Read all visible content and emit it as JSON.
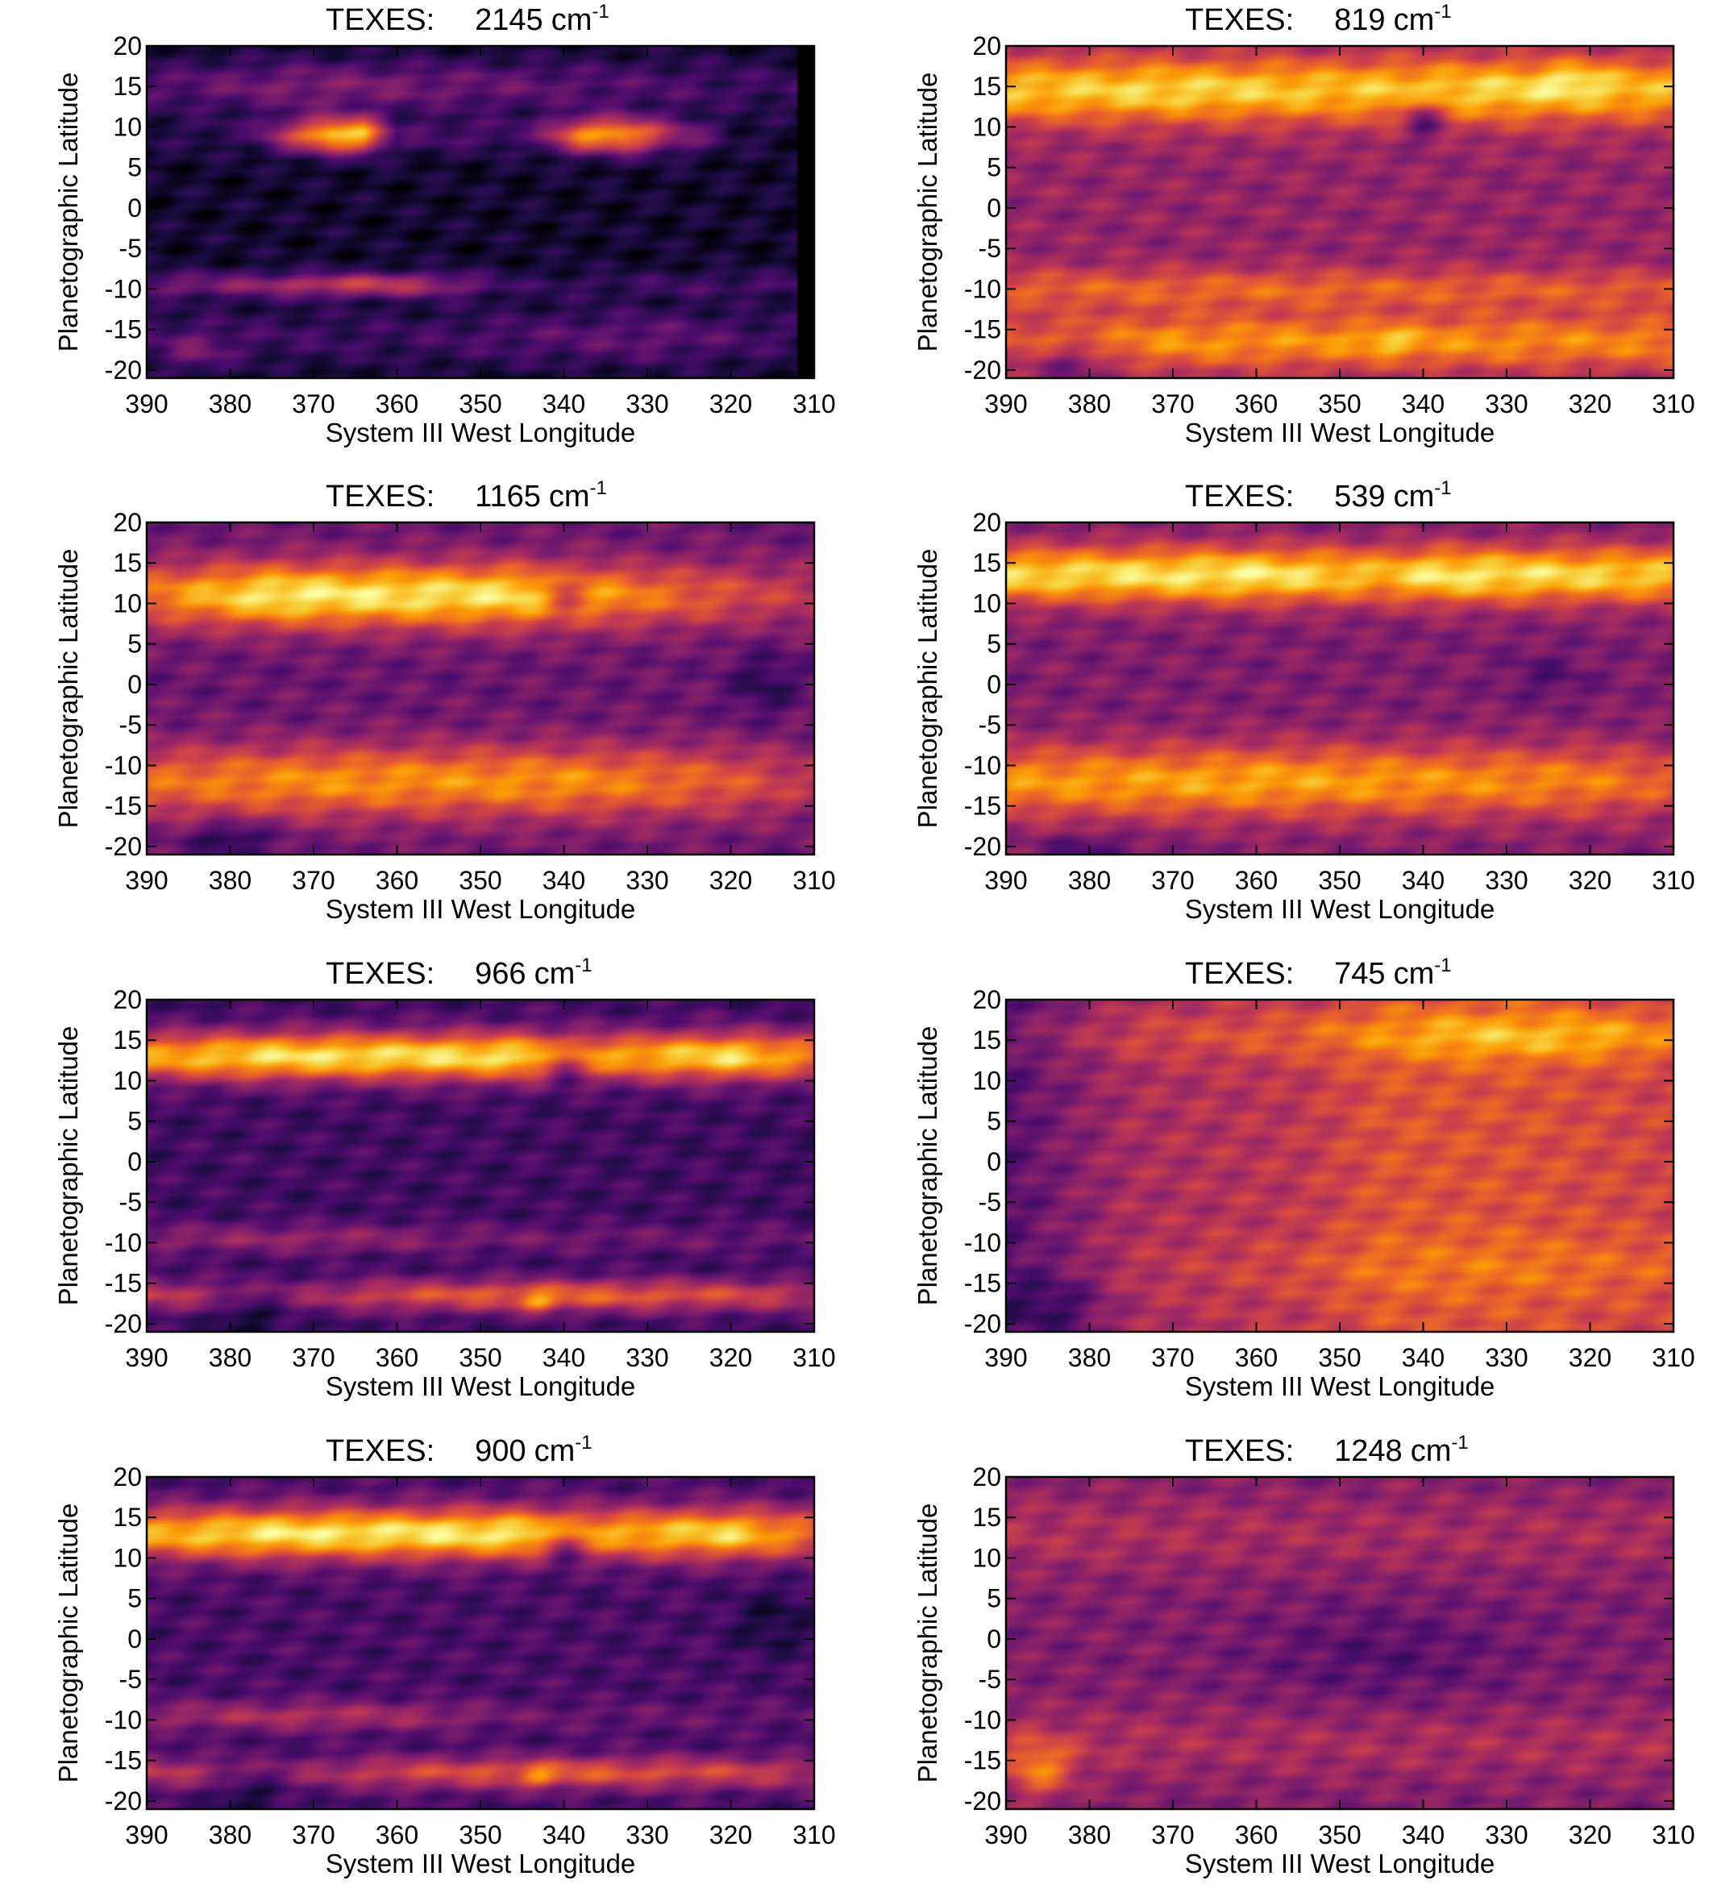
{
  "figure": {
    "colormap": [
      "#000004",
      "#1b0c41",
      "#4a0c6b",
      "#781c6d",
      "#a52c60",
      "#cf4446",
      "#ed6925",
      "#fb9b06",
      "#f7d13d",
      "#fcffa4"
    ],
    "instrument_label": "TEXES:",
    "unit_base": "cm",
    "unit_exp": "-1",
    "xlabel": "System III West Longitude",
    "ylabel": "Planetographic Latitude",
    "xlim": [
      390,
      310
    ],
    "ylim": [
      -21,
      20
    ],
    "xticks": [
      "390",
      "380",
      "370",
      "360",
      "350",
      "340",
      "330",
      "320",
      "310"
    ],
    "yticks": [
      "20",
      "15",
      "10",
      "5",
      "0",
      "-5",
      "-10",
      "-15",
      "-20"
    ]
  },
  "chart_data": [
    {
      "type": "heatmap",
      "title_value": "2145",
      "xlabel": "System III West Longitude",
      "ylabel": "Planetographic Latitude",
      "xlim": [
        390,
        310
      ],
      "ylim": [
        -21,
        20
      ],
      "base": 0.08,
      "no_data_from_lon": 312,
      "bands": [
        {
          "lat": 9,
          "width": 2.2,
          "amp": 0.85,
          "lonmod": [
            [
              390,
              0.05
            ],
            [
              378,
              0.1
            ],
            [
              372,
              0.55
            ],
            [
              368,
              0.95
            ],
            [
              364,
              0.9
            ],
            [
              360,
              0.15
            ],
            [
              344,
              0.15
            ],
            [
              338,
              0.75
            ],
            [
              333,
              0.85
            ],
            [
              328,
              0.45
            ],
            [
              320,
              0.05
            ],
            [
              310,
              0.0
            ]
          ]
        },
        {
          "lat": 15,
          "width": 3.2,
          "amp": 0.3,
          "lonmod": [
            [
              390,
              0.5
            ],
            [
              370,
              0.9
            ],
            [
              350,
              0.7
            ],
            [
              330,
              0.5
            ],
            [
              310,
              0.3
            ]
          ]
        },
        {
          "lat": -9.5,
          "width": 1.6,
          "amp": 0.35,
          "lonmod": [
            [
              390,
              0.6
            ],
            [
              370,
              0.9
            ],
            [
              355,
              0.8
            ],
            [
              345,
              0.2
            ],
            [
              310,
              0.4
            ]
          ]
        },
        {
          "lat": -16,
          "width": 3.5,
          "amp": 0.2,
          "lonmod": [
            [
              390,
              0.6
            ],
            [
              360,
              0.5
            ],
            [
              330,
              1.0
            ],
            [
              310,
              0.4
            ]
          ]
        }
      ],
      "features": [
        {
          "lon": 364,
          "lat": -9.5,
          "dlon": 8,
          "dlat": 1.2,
          "amp": 0.15
        },
        {
          "lon": 384,
          "lat": -18,
          "dlon": 4,
          "dlat": 2.5,
          "amp": 0.15
        }
      ]
    },
    {
      "type": "heatmap",
      "title_value": "819",
      "xlabel": "System III West Longitude",
      "ylabel": "Planetographic Latitude",
      "xlim": [
        390,
        310
      ],
      "ylim": [
        -21,
        20
      ],
      "base": 0.4,
      "bands": [
        {
          "lat": 14.5,
          "width": 4.0,
          "amp": 0.5,
          "lonmod": [
            [
              390,
              0.9
            ],
            [
              370,
              1.0
            ],
            [
              350,
              0.9
            ],
            [
              330,
              1.0
            ],
            [
              310,
              0.85
            ]
          ]
        },
        {
          "lat": -10,
          "width": 2.5,
          "amp": 0.25,
          "lonmod": [
            [
              390,
              0.9
            ],
            [
              360,
              1.0
            ],
            [
              310,
              0.8
            ]
          ]
        },
        {
          "lat": -16.5,
          "width": 3.5,
          "amp": 0.35,
          "lonmod": [
            [
              390,
              0.6
            ],
            [
              370,
              1.0
            ],
            [
              340,
              1.0
            ],
            [
              310,
              0.9
            ]
          ]
        }
      ],
      "features": [
        {
          "lon": 340,
          "lat": 11,
          "dlon": 2.5,
          "dlat": 2.5,
          "amp": -0.3
        },
        {
          "lon": 344,
          "lat": -16.5,
          "dlon": 3,
          "dlat": 1.5,
          "amp": 0.15
        },
        {
          "lon": 322,
          "lat": 16,
          "dlon": 4,
          "dlat": 2,
          "amp": 0.15
        },
        {
          "lon": 382,
          "lat": -19,
          "dlon": 5,
          "dlat": 2.5,
          "amp": -0.2
        }
      ]
    },
    {
      "type": "heatmap",
      "title_value": "1165",
      "xlabel": "System III West Longitude",
      "ylabel": "Planetographic Latitude",
      "xlim": [
        390,
        310
      ],
      "ylim": [
        -21,
        20
      ],
      "base": 0.3,
      "bands": [
        {
          "lat": 11,
          "width": 4.0,
          "amp": 0.65,
          "lonmod": [
            [
              390,
              0.6
            ],
            [
              375,
              1.0
            ],
            [
              345,
              0.95
            ],
            [
              330,
              0.6
            ],
            [
              315,
              0.35
            ],
            [
              310,
              0.3
            ]
          ]
        },
        {
          "lat": -12,
          "width": 4.5,
          "amp": 0.45,
          "lonmod": [
            [
              390,
              0.8
            ],
            [
              370,
              1.0
            ],
            [
              340,
              1.0
            ],
            [
              320,
              0.7
            ],
            [
              310,
              0.4
            ]
          ]
        }
      ],
      "features": [
        {
          "lon": 316,
          "lat": 0,
          "dlon": 4,
          "dlat": 4,
          "amp": -0.15
        },
        {
          "lon": 340,
          "lat": 11,
          "dlon": 2.5,
          "dlat": 2.5,
          "amp": -0.25
        },
        {
          "lon": 380,
          "lat": -19,
          "dlon": 5,
          "dlat": 2,
          "amp": -0.2
        }
      ]
    },
    {
      "type": "heatmap",
      "title_value": "539",
      "xlabel": "System III West Longitude",
      "ylabel": "Planetographic Latitude",
      "xlim": [
        390,
        310
      ],
      "ylim": [
        -21,
        20
      ],
      "base": 0.35,
      "bands": [
        {
          "lat": 13.5,
          "width": 3.5,
          "amp": 0.6,
          "lonmod": [
            [
              390,
              0.9
            ],
            [
              360,
              1.0
            ],
            [
              345,
              0.8
            ],
            [
              338,
              1.0
            ],
            [
              310,
              0.85
            ]
          ]
        },
        {
          "lat": -12,
          "width": 4.5,
          "amp": 0.45,
          "lonmod": [
            [
              390,
              0.9
            ],
            [
              360,
              1.0
            ],
            [
              320,
              0.8
            ],
            [
              310,
              0.6
            ]
          ]
        }
      ],
      "features": [
        {
          "lon": 325,
          "lat": 1,
          "dlon": 5,
          "dlat": 3,
          "amp": -0.1
        },
        {
          "lon": 380,
          "lat": -20,
          "dlon": 5,
          "dlat": 1.5,
          "amp": -0.15
        }
      ]
    },
    {
      "type": "heatmap",
      "title_value": "966",
      "xlabel": "System III West Longitude",
      "ylabel": "Planetographic Latitude",
      "xlim": [
        390,
        310
      ],
      "ylim": [
        -21,
        20
      ],
      "base": 0.2,
      "bands": [
        {
          "lat": 13,
          "width": 3.0,
          "amp": 0.72,
          "lonmod": [
            [
              390,
              0.8
            ],
            [
              375,
              1.0
            ],
            [
              345,
              1.0
            ],
            [
              335,
              0.8
            ],
            [
              320,
              1.0
            ],
            [
              310,
              0.7
            ]
          ]
        },
        {
          "lat": -9.5,
          "width": 1.8,
          "amp": 0.2,
          "lonmod": [
            [
              390,
              0.8
            ],
            [
              370,
              1.0
            ],
            [
              350,
              0.6
            ],
            [
              310,
              0.4
            ]
          ]
        },
        {
          "lat": -16.5,
          "width": 2.0,
          "amp": 0.45,
          "lonmod": [
            [
              390,
              0.7
            ],
            [
              375,
              0.3
            ],
            [
              360,
              0.8
            ],
            [
              340,
              1.0
            ],
            [
              320,
              0.8
            ],
            [
              310,
              0.6
            ]
          ]
        }
      ],
      "features": [
        {
          "lon": 340,
          "lat": 12,
          "dlon": 2.5,
          "dlat": 2.5,
          "amp": -0.3
        },
        {
          "lon": 343,
          "lat": -17.5,
          "dlon": 2,
          "dlat": 1.2,
          "amp": 0.25
        },
        {
          "lon": 378,
          "lat": -19,
          "dlon": 4,
          "dlat": 2.5,
          "amp": -0.15
        }
      ]
    },
    {
      "type": "heatmap",
      "title_value": "745",
      "xlabel": "System III West Longitude",
      "ylabel": "Planetographic Latitude",
      "xlim": [
        390,
        310
      ],
      "ylim": [
        -21,
        20
      ],
      "base": 0.5,
      "lon_gradient": [
        [
          390,
          -0.25
        ],
        [
          375,
          -0.05
        ],
        [
          355,
          0.0
        ],
        [
          345,
          0.1
        ],
        [
          330,
          0.1
        ],
        [
          310,
          0.05
        ]
      ],
      "bands": [
        {
          "lat": 15.5,
          "width": 3.0,
          "amp": 0.25,
          "lonmod": [
            [
              390,
              0.2
            ],
            [
              360,
              0.5
            ],
            [
              345,
              0.6
            ],
            [
              335,
              1.0
            ],
            [
              320,
              1.0
            ],
            [
              310,
              0.6
            ]
          ]
        },
        {
          "lat": -13,
          "width": 4.0,
          "amp": 0.1,
          "lonmod": [
            [
              390,
              0.0
            ],
            [
              360,
              0.6
            ],
            [
              330,
              1.0
            ],
            [
              310,
              0.8
            ]
          ]
        }
      ],
      "features": [
        {
          "lon": 384,
          "lat": -18,
          "dlon": 6,
          "dlat": 4,
          "amp": -0.15
        }
      ]
    },
    {
      "type": "heatmap",
      "title_value": "900",
      "xlabel": "System III West Longitude",
      "ylabel": "Planetographic Latitude",
      "xlim": [
        390,
        310
      ],
      "ylim": [
        -21,
        20
      ],
      "base": 0.22,
      "bands": [
        {
          "lat": 13,
          "width": 3.2,
          "amp": 0.72,
          "lonmod": [
            [
              390,
              0.8
            ],
            [
              375,
              1.0
            ],
            [
              345,
              1.0
            ],
            [
              335,
              0.8
            ],
            [
              320,
              0.95
            ],
            [
              310,
              0.6
            ]
          ]
        },
        {
          "lat": -9.5,
          "width": 1.8,
          "amp": 0.25,
          "lonmod": [
            [
              390,
              0.7
            ],
            [
              370,
              1.0
            ],
            [
              355,
              0.7
            ],
            [
              345,
              0.3
            ],
            [
              310,
              0.2
            ]
          ]
        },
        {
          "lat": -16.5,
          "width": 2.0,
          "amp": 0.4,
          "lonmod": [
            [
              390,
              0.7
            ],
            [
              375,
              0.3
            ],
            [
              360,
              0.8
            ],
            [
              340,
              1.0
            ],
            [
              320,
              0.8
            ],
            [
              310,
              0.6
            ]
          ]
        }
      ],
      "features": [
        {
          "lon": 340,
          "lat": 11.5,
          "dlon": 2.5,
          "dlat": 2.5,
          "amp": -0.3
        },
        {
          "lon": 343,
          "lat": -17,
          "dlon": 2,
          "dlat": 1.2,
          "amp": 0.2
        },
        {
          "lon": 315,
          "lat": 2,
          "dlon": 5,
          "dlat": 4,
          "amp": -0.12
        },
        {
          "lon": 378,
          "lat": -19,
          "dlon": 4,
          "dlat": 2.5,
          "amp": -0.15
        }
      ]
    },
    {
      "type": "heatmap",
      "title_value": "1248",
      "xlabel": "System III West Longitude",
      "ylabel": "Planetographic Latitude",
      "xlim": [
        390,
        310
      ],
      "ylim": [
        -21,
        20
      ],
      "base": 0.35,
      "bands": [
        {
          "lat": 13,
          "width": 5.0,
          "amp": 0.12,
          "lonmod": [
            [
              390,
              1.0
            ],
            [
              360,
              0.8
            ],
            [
              310,
              0.8
            ]
          ]
        },
        {
          "lat": -13,
          "width": 4.5,
          "amp": 0.12,
          "lonmod": [
            [
              390,
              1.0
            ],
            [
              360,
              0.8
            ],
            [
              310,
              0.9
            ]
          ]
        }
      ],
      "features": [
        {
          "lon": 386,
          "lat": -16,
          "dlon": 4,
          "dlat": 3.5,
          "amp": 0.3
        },
        {
          "lon": 345,
          "lat": -2,
          "dlon": 15,
          "dlat": 6,
          "amp": -0.1
        }
      ]
    }
  ]
}
